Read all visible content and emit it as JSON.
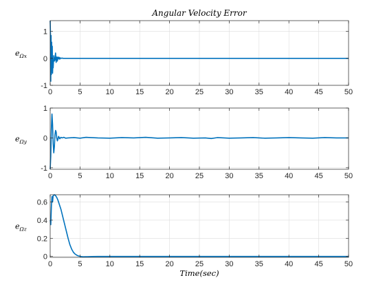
{
  "figure": {
    "title": "Angular Velocity Error",
    "xlabel": "Time(sec)",
    "line_color": "#0072BD"
  },
  "chart_data": [
    {
      "type": "line",
      "title": "Angular Velocity Error",
      "xlabel": "",
      "ylabel": "e",
      "ylabel_sub": "Ωx",
      "xlim": [
        0,
        50
      ],
      "ylim": [
        -1,
        1.4
      ],
      "xticks": [
        0,
        5,
        10,
        15,
        20,
        25,
        30,
        35,
        40,
        45,
        50
      ],
      "yticks": [
        -1,
        0,
        1
      ],
      "grid": true,
      "series": [
        {
          "x": [
            0,
            0.05,
            0.1,
            0.15,
            0.2,
            0.25,
            0.3,
            0.35,
            0.4,
            0.45,
            0.5,
            0.6,
            0.7,
            0.8,
            0.9,
            1.0,
            1.1,
            1.2,
            1.3,
            1.4,
            1.5,
            1.6,
            1.7,
            1.8,
            2.0,
            2.2,
            2.5,
            3,
            5,
            10,
            15,
            20,
            25,
            30,
            35,
            40,
            45,
            50
          ],
          "y": [
            1.4,
            0.9,
            -0.85,
            0.85,
            -0.6,
            0.6,
            -0.45,
            0.45,
            -0.55,
            -0.2,
            -0.35,
            0.1,
            -0.1,
            -0.05,
            0.2,
            -0.15,
            0.05,
            -0.1,
            0.05,
            -0.02,
            0.04,
            -0.03,
            0.02,
            0.0,
            0.01,
            0.0,
            0.0,
            0.0,
            0.0,
            0.0,
            0.0,
            0.0,
            0.0,
            0.0,
            0.0,
            0.0,
            0.0,
            0.0
          ]
        }
      ]
    },
    {
      "type": "line",
      "title": "",
      "xlabel": "",
      "ylabel": "e",
      "ylabel_sub": "Ωy",
      "xlim": [
        0,
        50
      ],
      "ylim": [
        -1.05,
        1
      ],
      "xticks": [
        0,
        5,
        10,
        15,
        20,
        25,
        30,
        35,
        40,
        45,
        50
      ],
      "yticks": [
        -1,
        0,
        1
      ],
      "grid": true,
      "series": [
        {
          "x": [
            0,
            0.1,
            0.2,
            0.3,
            0.4,
            0.5,
            0.6,
            0.7,
            0.8,
            0.9,
            1.0,
            1.1,
            1.2,
            1.3,
            1.4,
            1.5,
            1.6,
            1.8,
            2.0,
            2.3,
            2.6,
            3,
            4,
            5,
            6,
            8,
            10,
            12,
            14,
            16,
            18,
            20,
            22,
            24,
            26,
            27,
            28,
            30,
            32,
            34,
            36,
            38,
            40,
            42,
            44,
            46,
            48,
            50
          ],
          "y": [
            -1.05,
            -0.6,
            0.3,
            0.8,
            0.45,
            -0.2,
            -0.5,
            -0.3,
            0.1,
            0.25,
            0.2,
            0.0,
            -0.1,
            -0.05,
            0.05,
            0.02,
            -0.03,
            0.02,
            0.0,
            0.02,
            -0.01,
            0.0,
            0.01,
            -0.01,
            0.02,
            0.0,
            -0.01,
            0.01,
            0.0,
            0.02,
            -0.01,
            0.0,
            0.01,
            -0.01,
            0.0,
            -0.02,
            0.01,
            -0.01,
            0.0,
            0.01,
            -0.01,
            0.0,
            0.01,
            0.0,
            -0.01,
            0.01,
            0.0,
            0.0
          ]
        }
      ]
    },
    {
      "type": "line",
      "title": "",
      "xlabel": "Time(sec)",
      "ylabel": "e",
      "ylabel_sub": "Ωz",
      "xlim": [
        0,
        50
      ],
      "ylim": [
        -0.01,
        0.68
      ],
      "xticks": [
        0,
        5,
        10,
        15,
        20,
        25,
        30,
        35,
        40,
        45,
        50
      ],
      "yticks": [
        0,
        0.2,
        0.4,
        0.6
      ],
      "ytick_labels": [
        "0",
        "0.2",
        "0.4",
        "0.6"
      ],
      "grid": true,
      "series": [
        {
          "x": [
            0,
            0.1,
            0.2,
            0.3,
            0.4,
            0.5,
            0.7,
            0.9,
            1.1,
            1.3,
            1.5,
            1.8,
            2.1,
            2.4,
            2.7,
            3.0,
            3.3,
            3.6,
            3.9,
            4.2,
            4.5,
            4.8,
            5.1,
            5.5,
            6,
            7,
            8,
            10,
            15,
            20,
            25,
            30,
            35,
            40,
            45,
            50
          ],
          "y": [
            0.4,
            0.35,
            0.55,
            0.66,
            0.6,
            0.67,
            0.68,
            0.67,
            0.65,
            0.62,
            0.58,
            0.52,
            0.44,
            0.36,
            0.28,
            0.2,
            0.13,
            0.08,
            0.045,
            0.025,
            0.012,
            0.004,
            0.0,
            -0.004,
            -0.003,
            -0.001,
            0.0,
            0.0,
            0.0,
            0.0,
            0.0,
            0.0,
            0.0,
            0.0,
            0.0,
            0.0
          ]
        }
      ]
    }
  ]
}
